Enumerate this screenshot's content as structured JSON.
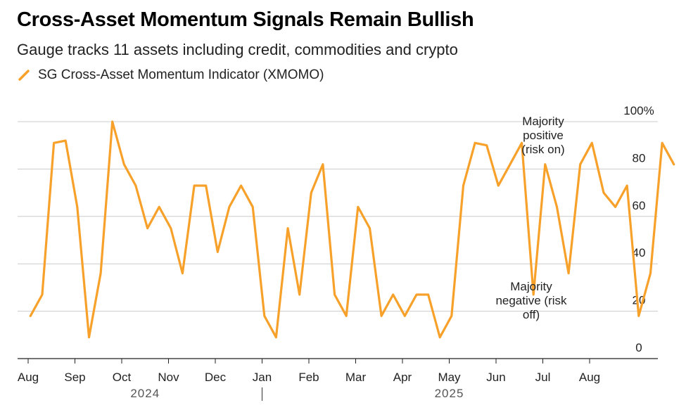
{
  "title": "Cross-Asset Momentum Signals Remain Bullish",
  "subtitle": "Gauge tracks 11 assets including credit, commodities and crypto",
  "legend": {
    "label": "SG Cross-Asset Momentum Indicator (XMOMO)",
    "color": "#f7a12b"
  },
  "annotations": {
    "positive": [
      "Majority",
      "positive",
      "(risk on)"
    ],
    "negative": [
      "Majority",
      "negative (risk",
      "off)"
    ]
  },
  "chart_data": {
    "type": "line",
    "title": "Cross-Asset Momentum Signals Remain Bullish",
    "subtitle": "Gauge tracks 11 assets including credit, commodities and crypto",
    "series": [
      {
        "name": "SG Cross-Asset Momentum Indicator (XMOMO)",
        "color": "#f7a12b",
        "points": [
          [
            0.05,
            18
          ],
          [
            0.3,
            27
          ],
          [
            0.55,
            91
          ],
          [
            0.8,
            92
          ],
          [
            1.05,
            64
          ],
          [
            1.3,
            9
          ],
          [
            1.55,
            36
          ],
          [
            1.8,
            100
          ],
          [
            2.05,
            82
          ],
          [
            2.3,
            73
          ],
          [
            2.55,
            55
          ],
          [
            2.8,
            64
          ],
          [
            3.05,
            55
          ],
          [
            3.3,
            36
          ],
          [
            3.55,
            73
          ],
          [
            3.8,
            73
          ],
          [
            4.05,
            45
          ],
          [
            4.3,
            64
          ],
          [
            4.55,
            73
          ],
          [
            4.8,
            64
          ],
          [
            5.05,
            18
          ],
          [
            5.3,
            9
          ],
          [
            5.55,
            55
          ],
          [
            5.8,
            27
          ],
          [
            6.05,
            70
          ],
          [
            6.3,
            82
          ],
          [
            6.55,
            27
          ],
          [
            6.8,
            18
          ],
          [
            7.05,
            64
          ],
          [
            7.3,
            55
          ],
          [
            7.55,
            18
          ],
          [
            7.8,
            27
          ],
          [
            8.05,
            18
          ],
          [
            8.3,
            27
          ],
          [
            8.55,
            27
          ],
          [
            8.8,
            9
          ],
          [
            9.05,
            18
          ],
          [
            9.3,
            73
          ],
          [
            9.55,
            91
          ],
          [
            9.8,
            90
          ],
          [
            10.05,
            73
          ],
          [
            10.3,
            82
          ],
          [
            10.55,
            91
          ],
          [
            10.8,
            27
          ],
          [
            11.05,
            82
          ],
          [
            11.3,
            64
          ],
          [
            11.55,
            36
          ],
          [
            11.8,
            82
          ],
          [
            12.05,
            91
          ],
          [
            12.3,
            70
          ],
          [
            12.55,
            64
          ],
          [
            12.8,
            73
          ],
          [
            13.05,
            18
          ],
          [
            13.3,
            36
          ],
          [
            13.55,
            91
          ],
          [
            13.8,
            82
          ]
        ]
      }
    ],
    "x_tick_labels": [
      "Aug",
      "Sep",
      "Oct",
      "Nov",
      "Dec",
      "Jan",
      "Feb",
      "Mar",
      "Apr",
      "May",
      "Jun",
      "Jul",
      "Aug"
    ],
    "x_tick_months": [
      0,
      1,
      2,
      3,
      4,
      5,
      6,
      7,
      8,
      9,
      10,
      11,
      12
    ],
    "xlim": [
      0,
      14
    ],
    "year_labels": [
      {
        "label": "2024",
        "center": 2.5
      },
      {
        "label": "2025",
        "center": 9.0
      }
    ],
    "year_divider_at": 5.0,
    "y_ticks": [
      0,
      20,
      40,
      60,
      80,
      100
    ],
    "y_tick_labels": [
      "0",
      "20",
      "40",
      "60",
      "80",
      "100%"
    ],
    "ylim": [
      0,
      100
    ],
    "y_axis_side": "right",
    "grid": true
  }
}
